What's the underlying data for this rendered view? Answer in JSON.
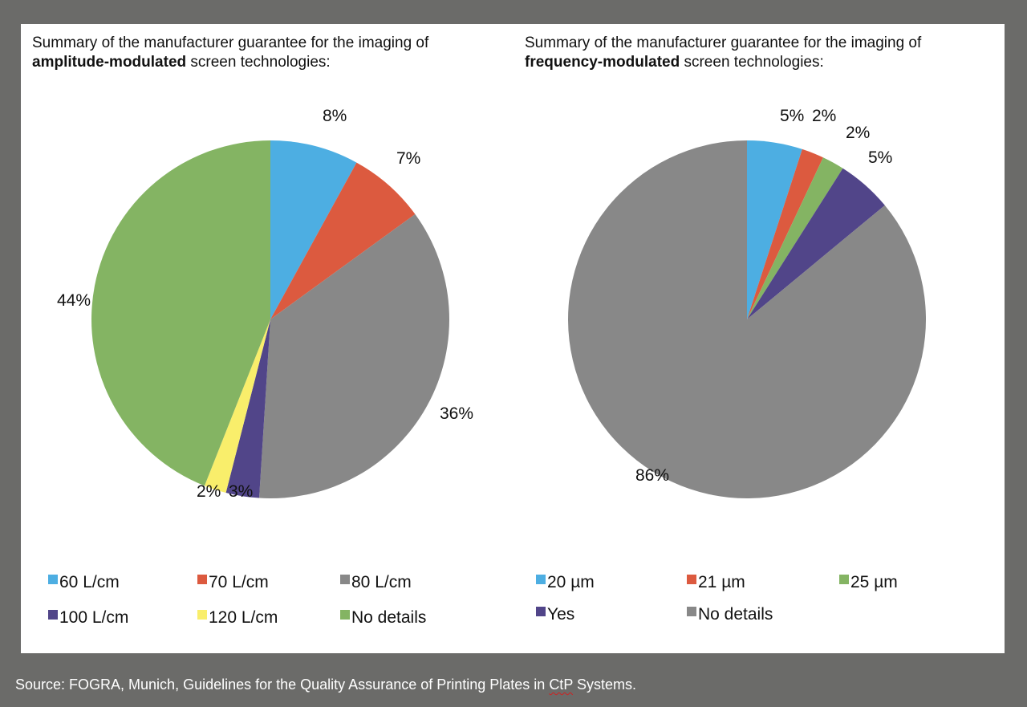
{
  "source": {
    "prefix": "Source: FOGRA, Munich, Guidelines for the Quality Assurance of Printing Plates in ",
    "underlined": "CtP",
    "suffix": " Systems."
  },
  "chart_data": [
    {
      "type": "pie",
      "title_line1": "Summary of the manufacturer guarantee for the imaging of",
      "title_bold": "amplitude-modulated",
      "title_rest": " screen technologies:",
      "start_angle_deg": 0,
      "direction": "clockwise",
      "slices": [
        {
          "name": "60 L/cm",
          "value": 8,
          "label": "8%",
          "color": "#4daee2"
        },
        {
          "name": "70 L/cm",
          "value": 7,
          "label": "7%",
          "color": "#dc5a3f"
        },
        {
          "name": "80 L/cm",
          "value": 36,
          "label": "36%",
          "color": "#888888"
        },
        {
          "name": "100 L/cm",
          "value": 3,
          "label": "3%",
          "color": "#514589"
        },
        {
          "name": "120 L/cm",
          "value": 2,
          "label": "2%",
          "color": "#f9ee6b"
        },
        {
          "name": "No details",
          "value": 44,
          "label": "44%",
          "color": "#84b463"
        }
      ]
    },
    {
      "type": "pie",
      "title_line1": "Summary of the manufacturer guarantee for the imaging of",
      "title_bold": "frequency-modulated",
      "title_rest": " screen technologies:",
      "start_angle_deg": 0,
      "direction": "clockwise",
      "slices": [
        {
          "name": "20 µm",
          "value": 5,
          "label": "5%",
          "color": "#4daee2"
        },
        {
          "name": "21 µm",
          "value": 2,
          "label": "2%",
          "color": "#dc5a3f"
        },
        {
          "name": "25 µm",
          "value": 2,
          "label": "2%",
          "color": "#84b463"
        },
        {
          "name": "Yes",
          "value": 5,
          "label": "5%",
          "color": "#514589"
        },
        {
          "name": "No details",
          "value": 86,
          "label": "86%",
          "color": "#888888"
        }
      ]
    }
  ]
}
